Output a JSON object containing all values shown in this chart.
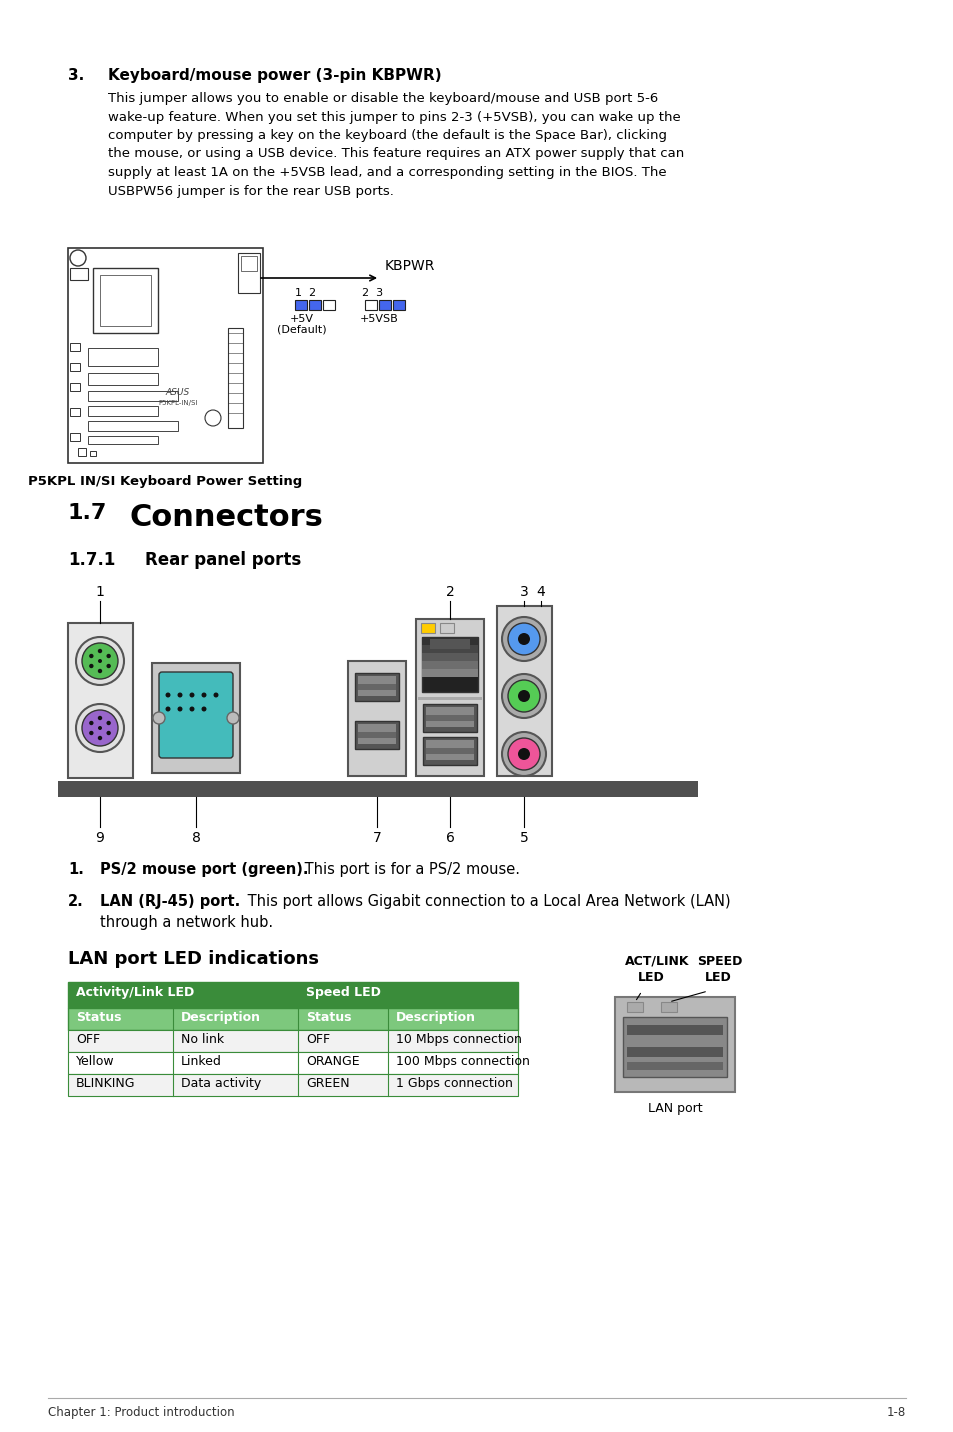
{
  "page_bg": "#ffffff",
  "table_header_bg": "#3a8c3a",
  "table_subheader_bg": "#7dc87d",
  "table_border": "#3a8c3a",
  "footer_left": "Chapter 1: Product introduction",
  "footer_right": "1-8",
  "table_rows": [
    [
      "OFF",
      "No link",
      "OFF",
      "10 Mbps connection"
    ],
    [
      "Yellow",
      "Linked",
      "ORANGE",
      "100 Mbps connection"
    ],
    [
      "BLINKING",
      "Data activity",
      "GREEN",
      "1 Gbps connection"
    ]
  ]
}
